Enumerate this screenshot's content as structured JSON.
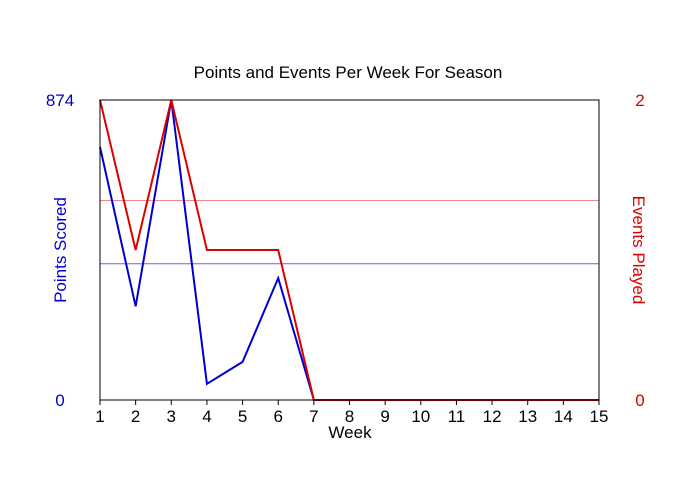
{
  "chart_data": {
    "type": "line",
    "title": "Points and Events Per Week For Season",
    "xlabel": "Week",
    "x": [
      1,
      2,
      3,
      4,
      5,
      6,
      7,
      8,
      9,
      10,
      11,
      12,
      13,
      14,
      15
    ],
    "xlim": [
      1,
      15
    ],
    "y_left": {
      "label": "Points Scored",
      "ylim": [
        0,
        874
      ],
      "tick_labels": [
        "0",
        "874"
      ],
      "color": "#0000cc"
    },
    "y_right": {
      "label": "Events Played",
      "ylim": [
        0,
        2
      ],
      "tick_labels": [
        "0",
        "2"
      ],
      "color": "#dd0000"
    },
    "series": [
      {
        "name": "Points Scored",
        "axis": "left",
        "color": "#0000cc",
        "values": [
          737,
          273,
          874,
          47,
          111,
          355,
          0,
          0,
          0,
          0,
          0,
          0,
          0,
          0,
          0
        ]
      },
      {
        "name": "Events Played",
        "axis": "right",
        "color": "#dd0000",
        "values": [
          2,
          1,
          2,
          1,
          1,
          1,
          0,
          0,
          0,
          0,
          0,
          0,
          0,
          0,
          0
        ]
      }
    ],
    "reference_lines": [
      {
        "axis": "left",
        "value": 397,
        "color": "#6666dd"
      },
      {
        "axis": "right",
        "value": 1.33,
        "color": "#ee8888"
      }
    ],
    "grid": false,
    "legend": "none"
  }
}
